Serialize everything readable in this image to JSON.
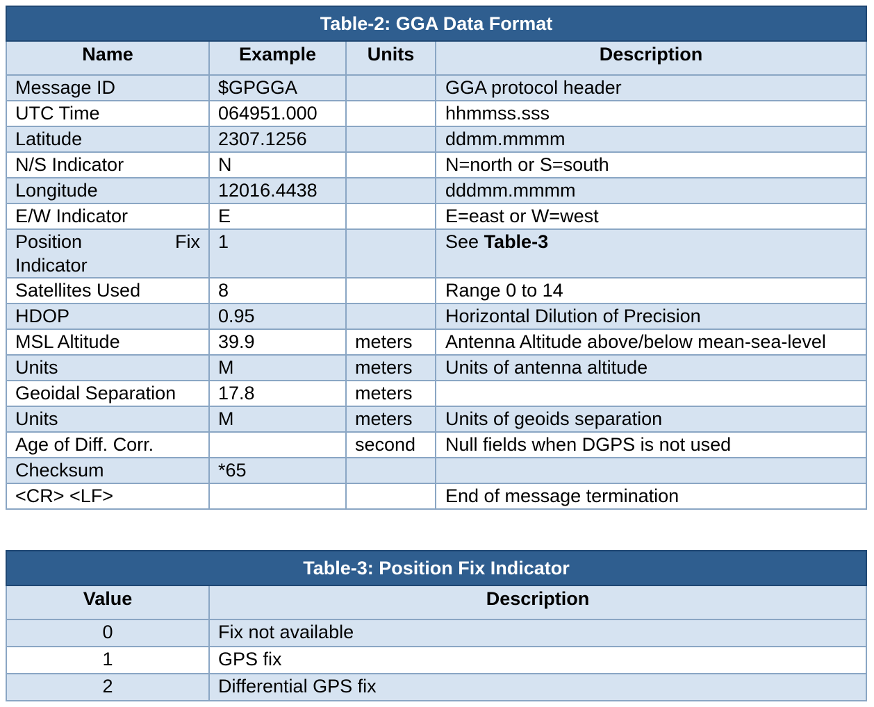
{
  "table2": {
    "title": "Table-2: GGA Data Format",
    "headers": [
      "Name",
      "Example",
      "Units",
      "Description"
    ],
    "rows": [
      {
        "name": "Message ID",
        "example": "$GPGGA",
        "units": "",
        "description": "GGA protocol header"
      },
      {
        "name": "UTC Time",
        "example": "064951.000",
        "units": "",
        "description": "hhmmss.sss"
      },
      {
        "name": "Latitude",
        "example": "2307.1256",
        "units": "",
        "description": "ddmm.mmmm"
      },
      {
        "name": "N/S Indicator",
        "example": "N",
        "units": "",
        "description": "N=north or S=south"
      },
      {
        "name": "Longitude",
        "example": "12016.4438",
        "units": "",
        "description": "dddmm.mmmm"
      },
      {
        "name": "E/W Indicator",
        "example": "E",
        "units": "",
        "description": "E=east or W=west"
      },
      {
        "name": "Position Fix Indicator",
        "name_part1": "Position",
        "name_part2": "Fix",
        "name_part3": "Indicator",
        "example": "1",
        "units": "",
        "description": "See",
        "description_bold": "Table-3"
      },
      {
        "name": "Satellites Used",
        "example": "8",
        "units": "",
        "description": "Range 0 to 14"
      },
      {
        "name": "HDOP",
        "example": "0.95",
        "units": "",
        "description": "Horizontal Dilution of Precision"
      },
      {
        "name": "MSL Altitude",
        "example": "39.9",
        "units": "meters",
        "description": "Antenna Altitude above/below mean-sea-level"
      },
      {
        "name": "Units",
        "example": "M",
        "units": "meters",
        "description": "Units of antenna altitude"
      },
      {
        "name": "Geoidal Separation",
        "example": "17.8",
        "units": "meters",
        "description": ""
      },
      {
        "name": "Units",
        "example": "M",
        "units": "meters",
        "description": "Units of geoids separation"
      },
      {
        "name": "Age of Diff. Corr.",
        "example": "",
        "units": "second",
        "description": "Null fields when DGPS is not used"
      },
      {
        "name": "Checksum",
        "example": "*65",
        "units": "",
        "description": ""
      },
      {
        "name": "<CR> <LF>",
        "example": "",
        "units": "",
        "description": "End of message termination"
      }
    ]
  },
  "table3": {
    "title": "Table-3: Position Fix Indicator",
    "headers": [
      "Value",
      "Description"
    ],
    "rows": [
      {
        "value": "0",
        "description": "Fix not available"
      },
      {
        "value": "1",
        "description": "GPS fix"
      },
      {
        "value": "2",
        "description": "Differential GPS fix"
      }
    ]
  },
  "colors": {
    "title_bg": "#2f5e8f",
    "band_bg": "#d6e3f1",
    "border": "#8aa6c4"
  }
}
